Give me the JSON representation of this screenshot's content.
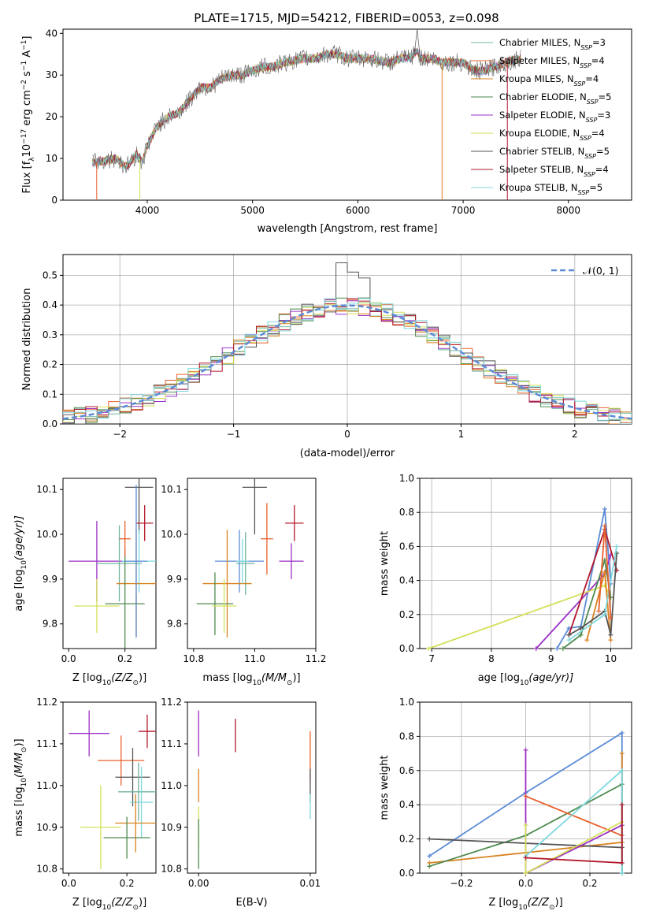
{
  "figure": {
    "title": "PLATE=1715, MJD=54212, FIBERID=0053, z=0.098"
  },
  "colors": {
    "grid": "#b0b0b0",
    "normal_curve": "#5b8bd6",
    "models": [
      "#6fb3a0",
      "#e8602c",
      "#d9821f",
      "#4f8a4f",
      "#9b30c6",
      "#d4e05a",
      "#555555",
      "#b2182b",
      "#7fd8de"
    ]
  },
  "chart_data": [
    {
      "id": "spectrum",
      "type": "line",
      "xlabel": "wavelength [Angstrom, rest frame]",
      "ylabel": "Flux [f_λ10^-17 erg cm^-2 s^-1 A^-1]",
      "xlim": [
        3200,
        8600
      ],
      "ylim": [
        0,
        41
      ],
      "xticks": [
        4000,
        5000,
        6000,
        7000,
        8000
      ],
      "yticks": [
        0,
        10,
        20,
        30,
        40
      ],
      "grid": false,
      "legend_position": "right",
      "legend": [
        {
          "base": "Chabrier MILES, N",
          "sub": "SSP",
          "tail": "=3"
        },
        {
          "base": "Salpeter MILES, N",
          "sub": "SSP",
          "tail": "=4"
        },
        {
          "base": "Kroupa MILES, N",
          "sub": "SSP",
          "tail": "=4"
        },
        {
          "base": "Chabrier ELODIE, N",
          "sub": "SSP",
          "tail": "=5"
        },
        {
          "base": "Salpeter ELODIE, N",
          "sub": "SSP",
          "tail": "=3"
        },
        {
          "base": "Kroupa ELODIE, N",
          "sub": "SSP",
          "tail": "=4"
        },
        {
          "base": "Chabrier STELIB, N",
          "sub": "SSP",
          "tail": "=5"
        },
        {
          "base": "Salpeter STELIB, N",
          "sub": "SSP",
          "tail": "=4"
        },
        {
          "base": "Kroupa STELIB, N",
          "sub": "SSP",
          "tail": "=5"
        }
      ],
      "continuum": [
        [
          3480,
          9
        ],
        [
          3600,
          9.5
        ],
        [
          3700,
          10
        ],
        [
          3800,
          8
        ],
        [
          3900,
          11
        ],
        [
          3950,
          9
        ],
        [
          4000,
          13
        ],
        [
          4100,
          18
        ],
        [
          4200,
          20
        ],
        [
          4300,
          21
        ],
        [
          4400,
          24
        ],
        [
          4500,
          27
        ],
        [
          4600,
          27
        ],
        [
          4700,
          29
        ],
        [
          4800,
          30
        ],
        [
          4900,
          30
        ],
        [
          5000,
          31
        ],
        [
          5100,
          32
        ],
        [
          5200,
          32
        ],
        [
          5300,
          33
        ],
        [
          5400,
          33.5
        ],
        [
          5500,
          34
        ],
        [
          5600,
          34
        ],
        [
          5700,
          35
        ],
        [
          5800,
          35
        ],
        [
          5900,
          34
        ],
        [
          6000,
          34
        ],
        [
          6100,
          34
        ],
        [
          6200,
          33.5
        ],
        [
          6300,
          33
        ],
        [
          6400,
          34
        ],
        [
          6500,
          34
        ],
        [
          6560,
          36
        ],
        [
          6600,
          34
        ],
        [
          6700,
          34
        ],
        [
          6800,
          33
        ],
        [
          6900,
          33
        ],
        [
          7000,
          33
        ],
        [
          7100,
          31
        ],
        [
          7200,
          31
        ],
        [
          7300,
          32
        ],
        [
          7400,
          33
        ],
        [
          7550,
          34
        ]
      ],
      "drops": [
        [
          3520,
          0
        ],
        [
          3930,
          0
        ],
        [
          6800,
          0
        ],
        [
          7420,
          0
        ]
      ],
      "peak": [
        6563,
        41
      ]
    },
    {
      "id": "residuals",
      "type": "bar",
      "xlabel": "(data-model)/error",
      "ylabel": "Normed distribution",
      "xlim": [
        -2.5,
        2.5
      ],
      "ylim": [
        0,
        0.57
      ],
      "xticks": [
        -2,
        -1,
        0,
        1,
        2
      ],
      "yticks": [
        0.0,
        0.1,
        0.2,
        0.3,
        0.4,
        0.5
      ],
      "grid": true,
      "legend_position": "top-right",
      "legend_label": "𝒩(0, 1)"
    },
    {
      "id": "age-vs-z",
      "type": "scatter",
      "xlabel": "Z [log10(Z/Z⊙)]",
      "ylabel": "age [log10(age/yr)]",
      "xlim": [
        -0.02,
        0.31
      ],
      "ylim": [
        9.745,
        10.125
      ],
      "xticks": [
        0.0,
        0.2
      ],
      "yticks": [
        9.8,
        9.9,
        10.0,
        10.1
      ],
      "points": [
        {
          "x": 0.25,
          "y": 10.105,
          "xe": 0.05,
          "ye": 0.105,
          "c": 6
        },
        {
          "x": 0.27,
          "y": 10.025,
          "xe": 0.03,
          "ye": 0.04,
          "c": 7
        },
        {
          "x": 0.1,
          "y": 9.94,
          "xe": 0.1,
          "ye": 0.09,
          "c": 4
        },
        {
          "x": 0.18,
          "y": 9.935,
          "xe": 0.08,
          "ye": 0.085,
          "c": 0
        },
        {
          "x": 0.25,
          "y": 9.94,
          "xe": 0.06,
          "ye": 0.07,
          "c": 8
        },
        {
          "x": 0.24,
          "y": 9.89,
          "xe": 0.07,
          "ye": 0.12,
          "c": 2
        },
        {
          "x": 0.2,
          "y": 9.845,
          "xe": 0.07,
          "ye": 0.12,
          "c": 3
        },
        {
          "x": 0.1,
          "y": 9.84,
          "xe": 0.08,
          "ye": 0.06,
          "c": 5
        },
        {
          "x": 0.24,
          "y": 9.94,
          "xe": 0.04,
          "ye": 0.17,
          "c": 9
        },
        {
          "x": 0.2,
          "y": 9.99,
          "xe": 0.02,
          "ye": 0.04,
          "c": 1
        }
      ]
    },
    {
      "id": "age-vs-mass",
      "type": "scatter",
      "xlabel": "mass [log10(M/M⊙)]",
      "ylabel": "",
      "xlim": [
        10.78,
        11.2
      ],
      "ylim": [
        9.745,
        10.125
      ],
      "xticks": [
        10.8,
        11.0,
        11.2
      ],
      "yticks": [
        9.8,
        9.9,
        10.0,
        10.1
      ],
      "points": [
        {
          "x": 11.0,
          "y": 10.105,
          "xe": 0.04,
          "ye": 0.105,
          "c": 6
        },
        {
          "x": 11.13,
          "y": 10.025,
          "xe": 0.03,
          "ye": 0.04,
          "c": 7
        },
        {
          "x": 11.12,
          "y": 9.94,
          "xe": 0.04,
          "ye": 0.04,
          "c": 4
        },
        {
          "x": 10.97,
          "y": 9.935,
          "xe": 0.03,
          "ye": 0.07,
          "c": 0
        },
        {
          "x": 10.95,
          "y": 9.94,
          "xe": 0.08,
          "ye": 0.07,
          "c": 9
        },
        {
          "x": 10.91,
          "y": 9.89,
          "xe": 0.08,
          "ye": 0.12,
          "c": 2
        },
        {
          "x": 10.87,
          "y": 9.845,
          "xe": 0.06,
          "ye": 0.07,
          "c": 3
        },
        {
          "x": 10.9,
          "y": 9.84,
          "xe": 0.04,
          "ye": 0.06,
          "c": 5
        },
        {
          "x": 10.96,
          "y": 9.94,
          "xe": 0.02,
          "ye": 0.05,
          "c": 8
        },
        {
          "x": 11.04,
          "y": 9.99,
          "xe": 0.02,
          "ye": 0.08,
          "c": 1
        }
      ]
    },
    {
      "id": "mass-weight-vs-age",
      "type": "line",
      "xlabel": "age [log10(age/yr)]",
      "ylabel": "mass weight",
      "xlim": [
        6.8,
        10.35
      ],
      "ylim": [
        0,
        1.0
      ],
      "xticks": [
        7,
        8,
        9,
        10
      ],
      "yticks": [
        0.0,
        0.2,
        0.4,
        0.6,
        0.8,
        1.0
      ],
      "grid": true,
      "series": [
        {
          "c": 9,
          "points": [
            [
              9.1,
              0
            ],
            [
              9.3,
              0.12
            ],
            [
              9.5,
              0.13
            ],
            [
              9.9,
              0.82
            ],
            [
              10.0,
              0.38
            ]
          ]
        },
        {
          "c": 4,
          "points": [
            [
              8.75,
              0
            ],
            [
              9.9,
              0.44
            ],
            [
              10.0,
              0.55
            ]
          ]
        },
        {
          "c": 5,
          "points": [
            [
              6.95,
              0
            ],
            [
              9.9,
              0.37
            ],
            [
              10.0,
              0.3
            ]
          ]
        },
        {
          "c": 3,
          "points": [
            [
              9.2,
              0
            ],
            [
              9.5,
              0.08
            ],
            [
              9.9,
              0.52
            ],
            [
              10.0,
              0.3
            ]
          ]
        },
        {
          "c": 2,
          "points": [
            [
              9.6,
              0.05
            ],
            [
              9.9,
              0.45
            ],
            [
              10.0,
              0.05
            ]
          ]
        },
        {
          "c": 7,
          "points": [
            [
              9.3,
              0.08
            ],
            [
              9.9,
              0.7
            ],
            [
              10.1,
              0.46
            ]
          ]
        },
        {
          "c": 6,
          "points": [
            [
              9.3,
              0.08
            ],
            [
              9.5,
              0.12
            ],
            [
              9.9,
              0.22
            ],
            [
              10.0,
              0.08
            ],
            [
              10.1,
              0.56
            ]
          ]
        },
        {
          "c": 8,
          "points": [
            [
              9.3,
              0.05
            ],
            [
              9.9,
              0.2
            ],
            [
              10.1,
              0.6
            ]
          ]
        },
        {
          "c": 1,
          "points": [
            [
              9.8,
              0.22
            ],
            [
              9.9,
              0.72
            ],
            [
              10.0,
              0.18
            ]
          ]
        }
      ]
    },
    {
      "id": "mass-vs-z",
      "type": "scatter",
      "xlabel": "Z [log10(Z/Z⊙)]",
      "ylabel": "mass [log10(M/M⊙)]",
      "xlim": [
        -0.02,
        0.3
      ],
      "ylim": [
        10.79,
        11.2
      ],
      "xticks": [
        0.0,
        0.2
      ],
      "yticks": [
        10.8,
        10.9,
        11.0,
        11.1,
        11.2
      ],
      "points": [
        {
          "x": 0.07,
          "y": 11.125,
          "xe": 0.07,
          "ye": 0.055,
          "c": 4
        },
        {
          "x": 0.27,
          "y": 11.13,
          "xe": 0.03,
          "ye": 0.04,
          "c": 7
        },
        {
          "x": 0.18,
          "y": 11.06,
          "xe": 0.08,
          "ye": 0.06,
          "c": 1
        },
        {
          "x": 0.22,
          "y": 11.02,
          "xe": 0.06,
          "ye": 0.07,
          "c": 6
        },
        {
          "x": 0.24,
          "y": 10.985,
          "xe": 0.07,
          "ye": 0.07,
          "c": 0
        },
        {
          "x": 0.25,
          "y": 10.96,
          "xe": 0.04,
          "ye": 0.085,
          "c": 8
        },
        {
          "x": 0.23,
          "y": 10.91,
          "xe": 0.07,
          "ye": 0.07,
          "c": 2
        },
        {
          "x": 0.11,
          "y": 10.9,
          "xe": 0.07,
          "ye": 0.1,
          "c": 5
        },
        {
          "x": 0.2,
          "y": 10.875,
          "xe": 0.08,
          "ye": 0.05,
          "c": 3
        }
      ]
    },
    {
      "id": "mass-vs-ebv",
      "type": "scatter",
      "xlabel": "E(B-V)",
      "ylabel": "",
      "xlim": [
        -0.001,
        0.0105
      ],
      "ylim": [
        10.79,
        11.2
      ],
      "xticks": [
        0.0,
        0.01
      ],
      "yticks": [
        10.8,
        10.9,
        11.0,
        11.1,
        11.2
      ],
      "points": [
        {
          "x": 0.0,
          "y": 11.125,
          "xe": 0,
          "ye": 0.055,
          "c": 4
        },
        {
          "x": 0.0033,
          "y": 11.12,
          "xe": 0,
          "ye": 0.04,
          "c": 7
        },
        {
          "x": 0.01,
          "y": 11.07,
          "xe": 0,
          "ye": 0.06,
          "c": 1
        },
        {
          "x": 0.01,
          "y": 11.0,
          "xe": 0,
          "ye": 0.04,
          "c": 6
        },
        {
          "x": 0.01,
          "y": 10.95,
          "xe": 0,
          "ye": 0.03,
          "c": 8
        },
        {
          "x": 0.0,
          "y": 11.0,
          "xe": 0,
          "ye": 0.04,
          "c": 2
        },
        {
          "x": 0.0,
          "y": 10.9,
          "xe": 0,
          "ye": 0.05,
          "c": 5
        },
        {
          "x": 0.0,
          "y": 10.86,
          "xe": 0,
          "ye": 0.06,
          "c": 3
        }
      ]
    },
    {
      "id": "mass-weight-vs-z",
      "type": "line",
      "xlabel": "Z [log10(Z/Z⊙)]",
      "ylabel": "mass weight",
      "xlim": [
        -0.33,
        0.33
      ],
      "ylim": [
        0,
        1.0
      ],
      "xticks": [
        -0.2,
        0.0,
        0.2
      ],
      "yticks": [
        0.0,
        0.2,
        0.4,
        0.6,
        0.8,
        1.0
      ],
      "grid": true,
      "series": [
        {
          "c": 9,
          "points": [
            [
              -0.3,
              0.1
            ],
            [
              0.0,
              0.47
            ],
            [
              0.3,
              0.82
            ],
            [
              0.3,
              0.0
            ]
          ]
        },
        {
          "c": 2,
          "points": [
            [
              -0.3,
              0.06
            ],
            [
              0.0,
              0.12
            ],
            [
              0.3,
              0.18
            ],
            [
              0.3,
              0.7
            ]
          ]
        },
        {
          "c": 3,
          "points": [
            [
              -0.3,
              0.04
            ],
            [
              0.0,
              0.22
            ],
            [
              0.3,
              0.52
            ],
            [
              0.3,
              0.0
            ]
          ]
        },
        {
          "c": 6,
          "points": [
            [
              -0.3,
              0.2
            ],
            [
              0.3,
              0.15
            ]
          ]
        },
        {
          "c": 4,
          "points": [
            [
              0.0,
              0.72
            ],
            [
              0.0,
              0.0
            ],
            [
              0.3,
              0.28
            ]
          ]
        },
        {
          "c": 1,
          "points": [
            [
              0.0,
              0.45
            ],
            [
              0.3,
              0.22
            ]
          ]
        },
        {
          "c": 5,
          "points": [
            [
              0.0,
              0.28
            ],
            [
              0.0,
              0.0
            ],
            [
              0.3,
              0.3
            ]
          ]
        },
        {
          "c": 8,
          "points": [
            [
              0.0,
              0.1
            ],
            [
              0.3,
              0.6
            ],
            [
              0.3,
              0.0
            ]
          ]
        },
        {
          "c": 7,
          "points": [
            [
              0.0,
              0.09
            ],
            [
              0.3,
              0.06
            ],
            [
              0.3,
              0.4
            ]
          ]
        }
      ]
    }
  ]
}
